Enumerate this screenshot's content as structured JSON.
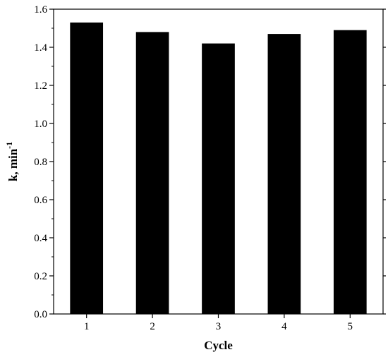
{
  "chart_data": {
    "type": "bar",
    "categories": [
      "1",
      "2",
      "3",
      "4",
      "5"
    ],
    "values": [
      1.53,
      1.48,
      1.42,
      1.47,
      1.49
    ],
    "xlabel": "Cycle",
    "ylabel": "k, min",
    "ylabel_superscript": "-1",
    "ylim": [
      0.0,
      1.6
    ],
    "yticks": [
      "0.0",
      "0.2",
      "0.4",
      "0.6",
      "0.8",
      "1.0",
      "1.2",
      "1.4",
      "1.6"
    ],
    "bar_color": "#000000",
    "grid": false,
    "legend": "none"
  }
}
